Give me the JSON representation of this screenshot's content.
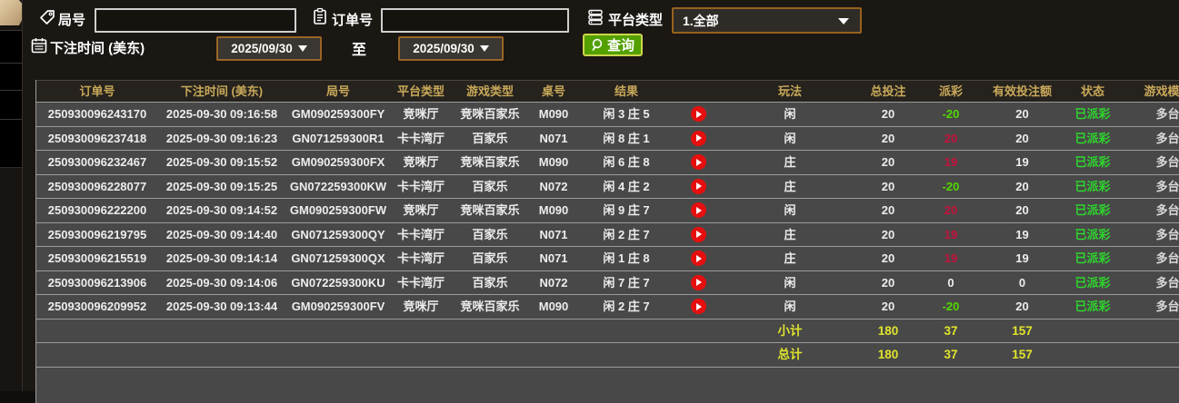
{
  "filters": {
    "round_label": "局号",
    "round_value": "",
    "order_label": "订单号",
    "order_value": "",
    "platform_label": "平台类型",
    "platform_selected": "1.全部",
    "bet_time_label": "下注时间 (美东)",
    "date_from": "2025/09/30",
    "to_label": "至",
    "date_to": "2025/09/30",
    "search_label": "查询"
  },
  "table": {
    "headers": [
      "订单号",
      "下注时间 (美东)",
      "局号",
      "平台类型",
      "游戏类型",
      "桌号",
      "结果",
      "",
      "玩法",
      "总投注",
      "派彩",
      "有效投注额",
      "状态",
      "游戏模式"
    ],
    "rows": [
      {
        "order": "250930096243170",
        "time": "2025-09-30 09:16:58",
        "round": "GM090259300FY",
        "platform": "竞咪厅",
        "game_type": "竞咪百家乐",
        "table_no": "M090",
        "result": "闲 3 庄 5",
        "play": "闲",
        "total_bet": "20",
        "payout": "-20",
        "valid_bet": "20",
        "status": "已派彩",
        "mode": "多台"
      },
      {
        "order": "250930096237418",
        "time": "2025-09-30 09:16:23",
        "round": "GN071259300R1",
        "platform": "卡卡湾厅",
        "game_type": "百家乐",
        "table_no": "N071",
        "result": "闲 8 庄 1",
        "play": "闲",
        "total_bet": "20",
        "payout": "20",
        "valid_bet": "20",
        "status": "已派彩",
        "mode": "多台"
      },
      {
        "order": "250930096232467",
        "time": "2025-09-30 09:15:52",
        "round": "GM090259300FX",
        "platform": "竞咪厅",
        "game_type": "竞咪百家乐",
        "table_no": "M090",
        "result": "闲 6 庄 8",
        "play": "庄",
        "total_bet": "20",
        "payout": "19",
        "valid_bet": "19",
        "status": "已派彩",
        "mode": "多台"
      },
      {
        "order": "250930096228077",
        "time": "2025-09-30 09:15:25",
        "round": "GN072259300KW",
        "platform": "卡卡湾厅",
        "game_type": "百家乐",
        "table_no": "N072",
        "result": "闲 4 庄 2",
        "play": "庄",
        "total_bet": "20",
        "payout": "-20",
        "valid_bet": "20",
        "status": "已派彩",
        "mode": "多台"
      },
      {
        "order": "250930096222200",
        "time": "2025-09-30 09:14:52",
        "round": "GM090259300FW",
        "platform": "竞咪厅",
        "game_type": "竞咪百家乐",
        "table_no": "M090",
        "result": "闲 9 庄 7",
        "play": "闲",
        "total_bet": "20",
        "payout": "20",
        "valid_bet": "20",
        "status": "已派彩",
        "mode": "多台"
      },
      {
        "order": "250930096219795",
        "time": "2025-09-30 09:14:40",
        "round": "GN071259300QY",
        "platform": "卡卡湾厅",
        "game_type": "百家乐",
        "table_no": "N071",
        "result": "闲 2 庄 7",
        "play": "庄",
        "total_bet": "20",
        "payout": "19",
        "valid_bet": "19",
        "status": "已派彩",
        "mode": "多台"
      },
      {
        "order": "250930096215519",
        "time": "2025-09-30 09:14:14",
        "round": "GN071259300QX",
        "platform": "卡卡湾厅",
        "game_type": "百家乐",
        "table_no": "N071",
        "result": "闲 1 庄 8",
        "play": "庄",
        "total_bet": "20",
        "payout": "19",
        "valid_bet": "19",
        "status": "已派彩",
        "mode": "多台"
      },
      {
        "order": "250930096213906",
        "time": "2025-09-30 09:14:06",
        "round": "GN072259300KU",
        "platform": "卡卡湾厅",
        "game_type": "百家乐",
        "table_no": "N072",
        "result": "闲 7 庄 7",
        "play": "闲",
        "total_bet": "20",
        "payout": "0",
        "valid_bet": "0",
        "status": "已派彩",
        "mode": "多台"
      },
      {
        "order": "250930096209952",
        "time": "2025-09-30 09:13:44",
        "round": "GM090259300FV",
        "platform": "竞咪厅",
        "game_type": "竞咪百家乐",
        "table_no": "M090",
        "result": "闲 2 庄 7",
        "play": "闲",
        "total_bet": "20",
        "payout": "-20",
        "valid_bet": "20",
        "status": "已派彩",
        "mode": "多台"
      }
    ],
    "subtotal": {
      "label": "小计",
      "total_bet": "180",
      "payout": "37",
      "valid_bet": "157"
    },
    "total": {
      "label": "总计",
      "total_bet": "180",
      "payout": "37",
      "valid_bet": "157"
    }
  },
  "colors": {
    "accent_green_button": "#53a000",
    "button_border_yellow": "#ccd64d",
    "picker_border_brown": "#9a6426",
    "header_gold": "#c8a95a",
    "payout_positive_red": "#c8123c",
    "payout_negative_green": "#52d800",
    "summary_yellow": "#e0e42c",
    "status_paid_green": "#2ed52e",
    "play_icon_red": "#e60f0f",
    "row_gray": "#484848"
  }
}
